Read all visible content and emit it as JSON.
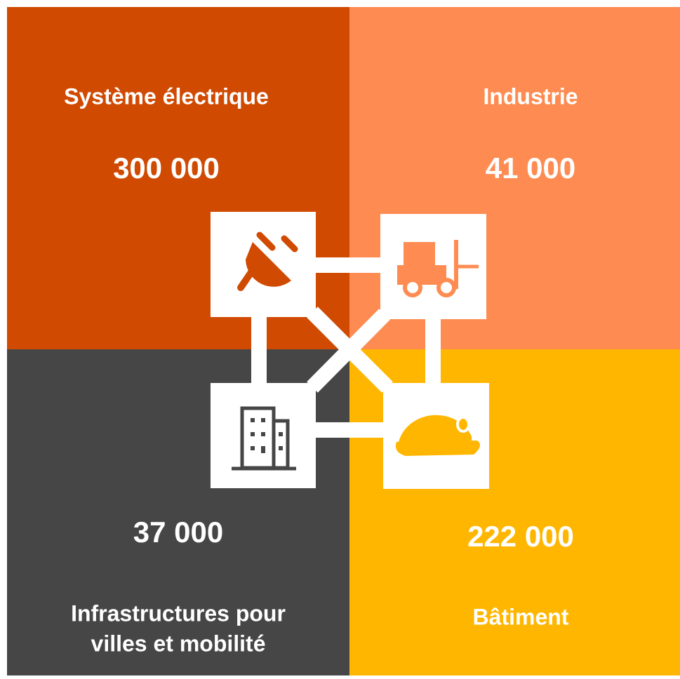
{
  "quadrants": [
    {
      "title": [
        "Système électrique"
      ],
      "value": "300 000"
    },
    {
      "title": [
        "Industrie"
      ],
      "value": "41 000"
    },
    {
      "title": [
        "Infrastructures pour",
        "villes et mobilité"
      ],
      "value": "37 000"
    },
    {
      "title": [
        "Bâtiment"
      ],
      "value": "222 000"
    }
  ]
}
